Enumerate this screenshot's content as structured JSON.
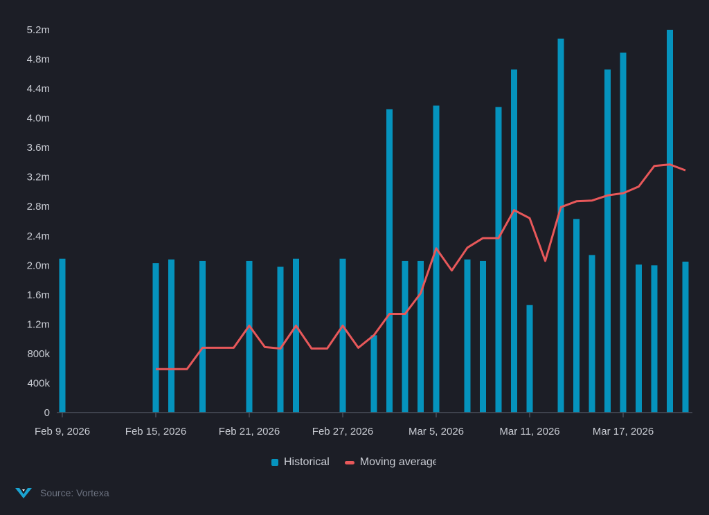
{
  "chart_data": {
    "type": "bar",
    "title": "",
    "xlabel": "",
    "ylabel": "",
    "ylim": [
      0,
      5200000
    ],
    "yticks": [
      "0",
      "400k",
      "800k",
      "1.2m",
      "1.6m",
      "2.0m",
      "2.4m",
      "2.8m",
      "3.2m",
      "3.6m",
      "4.0m",
      "4.4m",
      "4.8m",
      "5.2m"
    ],
    "ytick_values": [
      0,
      400000,
      800000,
      1200000,
      1600000,
      2000000,
      2400000,
      2800000,
      3200000,
      3600000,
      4000000,
      4400000,
      4800000,
      5200000
    ],
    "xlim": [
      "2026-02-09",
      "2026-03-22"
    ],
    "xticks": [
      "Feb 9, 2026",
      "Feb 15, 2026",
      "Feb 21, 2026",
      "Feb 27, 2026",
      "Mar 5, 2026",
      "Mar 11, 2026",
      "Mar 17, 2026"
    ],
    "xtick_dates": [
      "2026-02-09",
      "2026-02-15",
      "2026-02-21",
      "2026-02-27",
      "2026-03-05",
      "2026-03-11",
      "2026-03-17"
    ],
    "grid": false,
    "legend_placement": "bottom",
    "series": [
      {
        "name": "Historical",
        "type": "bar",
        "color": "#0593bd",
        "points": [
          [
            "2026-02-09",
            2090000
          ],
          [
            "2026-02-15",
            2030000
          ],
          [
            "2026-02-16",
            2080000
          ],
          [
            "2026-02-18",
            2060000
          ],
          [
            "2026-02-21",
            2060000
          ],
          [
            "2026-02-23",
            1980000
          ],
          [
            "2026-02-24",
            2090000
          ],
          [
            "2026-02-27",
            2090000
          ],
          [
            "2026-03-01",
            1050000
          ],
          [
            "2026-03-02",
            4120000
          ],
          [
            "2026-03-03",
            2060000
          ],
          [
            "2026-03-04",
            2060000
          ],
          [
            "2026-03-05",
            4170000
          ],
          [
            "2026-03-07",
            2080000
          ],
          [
            "2026-03-08",
            2060000
          ],
          [
            "2026-03-09",
            4150000
          ],
          [
            "2026-03-10",
            4660000
          ],
          [
            "2026-03-11",
            1460000
          ],
          [
            "2026-03-13",
            5080000
          ],
          [
            "2026-03-14",
            2630000
          ],
          [
            "2026-03-15",
            2140000
          ],
          [
            "2026-03-16",
            4660000
          ],
          [
            "2026-03-17",
            4890000
          ],
          [
            "2026-03-18",
            2010000
          ],
          [
            "2026-03-19",
            2000000
          ],
          [
            "2026-03-20",
            5200000
          ],
          [
            "2026-03-21",
            2050000
          ]
        ]
      },
      {
        "name": "Moving average",
        "type": "line",
        "color": "#e8585a",
        "points": [
          [
            "2026-02-15",
            590000
          ],
          [
            "2026-02-16",
            590000
          ],
          [
            "2026-02-17",
            590000
          ],
          [
            "2026-02-18",
            880000
          ],
          [
            "2026-02-19",
            880000
          ],
          [
            "2026-02-20",
            880000
          ],
          [
            "2026-02-21",
            1180000
          ],
          [
            "2026-02-22",
            890000
          ],
          [
            "2026-02-23",
            870000
          ],
          [
            "2026-02-24",
            1180000
          ],
          [
            "2026-02-25",
            870000
          ],
          [
            "2026-02-26",
            870000
          ],
          [
            "2026-02-27",
            1180000
          ],
          [
            "2026-02-28",
            880000
          ],
          [
            "2026-03-01",
            1050000
          ],
          [
            "2026-03-02",
            1340000
          ],
          [
            "2026-03-03",
            1340000
          ],
          [
            "2026-03-04",
            1620000
          ],
          [
            "2026-03-05",
            2230000
          ],
          [
            "2026-03-06",
            1930000
          ],
          [
            "2026-03-07",
            2240000
          ],
          [
            "2026-03-08",
            2370000
          ],
          [
            "2026-03-09",
            2370000
          ],
          [
            "2026-03-10",
            2750000
          ],
          [
            "2026-03-11",
            2640000
          ],
          [
            "2026-03-12",
            2060000
          ],
          [
            "2026-03-13",
            2790000
          ],
          [
            "2026-03-14",
            2870000
          ],
          [
            "2026-03-15",
            2880000
          ],
          [
            "2026-03-16",
            2950000
          ],
          [
            "2026-03-17",
            2980000
          ],
          [
            "2026-03-18",
            3070000
          ],
          [
            "2026-03-19",
            3350000
          ],
          [
            "2026-03-20",
            3370000
          ],
          [
            "2026-03-21",
            3290000
          ]
        ]
      }
    ]
  },
  "legend": {
    "historical": "Historical",
    "moving_average": "Moving average"
  },
  "source": {
    "text": "Source: Vortexa",
    "logo": "vortexa-v-logo"
  },
  "colors": {
    "background": "#1c1e26",
    "axis": "#4a4f5a",
    "text": "#c9ccd3"
  }
}
